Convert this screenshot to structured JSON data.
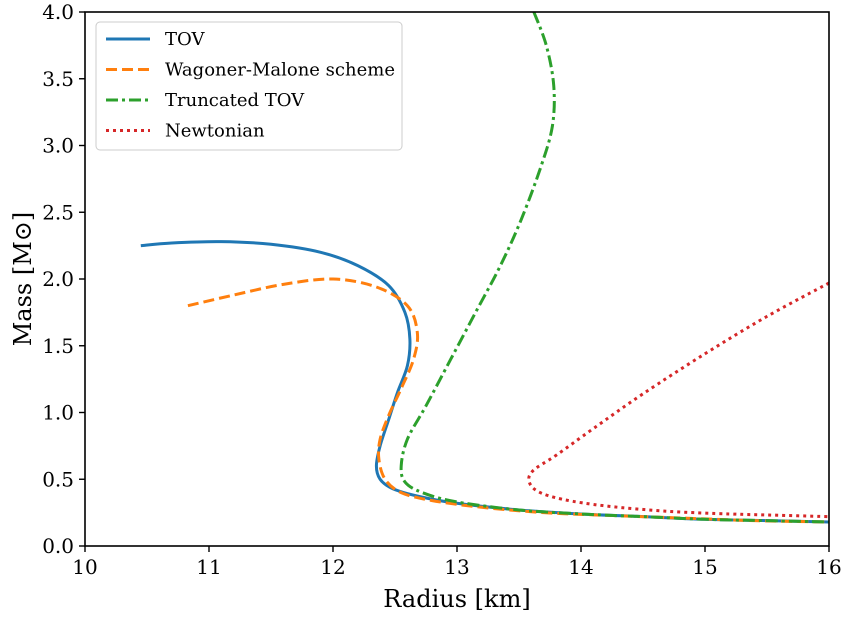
{
  "chart_data": {
    "type": "line",
    "xlabel": "Radius [km]",
    "ylabel": "Mass [M⊙]",
    "xlim": [
      10,
      16
    ],
    "ylim": [
      0,
      4
    ],
    "xticks": [
      "10",
      "11",
      "12",
      "13",
      "14",
      "15",
      "16"
    ],
    "yticks": [
      "0.0",
      "0.5",
      "1.0",
      "1.5",
      "2.0",
      "2.5",
      "3.0",
      "3.5",
      "4.0"
    ],
    "grid": false,
    "legend_position": "top-left",
    "series": [
      {
        "name": "TOV",
        "color": "#1f77b4",
        "style": "solid",
        "x": [
          10.45,
          10.7,
          11.1,
          11.5,
          11.9,
          12.2,
          12.45,
          12.58,
          12.62,
          12.6,
          12.52,
          12.45,
          12.38,
          12.35,
          12.38,
          12.48,
          12.7,
          13.0,
          13.5,
          14.0,
          14.5,
          15.0,
          15.5,
          16.0
        ],
        "y": [
          2.25,
          2.27,
          2.28,
          2.26,
          2.2,
          2.1,
          1.95,
          1.75,
          1.55,
          1.35,
          1.15,
          0.95,
          0.75,
          0.6,
          0.5,
          0.43,
          0.37,
          0.32,
          0.27,
          0.24,
          0.22,
          0.2,
          0.19,
          0.18
        ]
      },
      {
        "name": "Wagoner-Malone scheme",
        "color": "#ff7f0e",
        "style": "dashed",
        "x": [
          10.83,
          11.2,
          11.6,
          12.0,
          12.35,
          12.6,
          12.68,
          12.65,
          12.55,
          12.45,
          12.38,
          12.37,
          12.42,
          12.55,
          12.8,
          13.2,
          13.7,
          14.2,
          14.8,
          15.4,
          16.0
        ],
        "y": [
          1.8,
          1.88,
          1.96,
          2.0,
          1.94,
          1.8,
          1.6,
          1.4,
          1.18,
          0.98,
          0.8,
          0.65,
          0.5,
          0.4,
          0.34,
          0.29,
          0.25,
          0.23,
          0.21,
          0.19,
          0.18
        ]
      },
      {
        "name": "Truncated TOV",
        "color": "#2ca02c",
        "style": "dashdot",
        "x": [
          13.62,
          13.72,
          13.78,
          13.77,
          13.68,
          13.52,
          13.35,
          13.15,
          12.95,
          12.75,
          12.6,
          12.55,
          12.58,
          12.72,
          13.0,
          13.5,
          14.0,
          14.5,
          15.0,
          15.5,
          16.0
        ],
        "y": [
          4.0,
          3.75,
          3.45,
          3.15,
          2.85,
          2.45,
          2.1,
          1.75,
          1.4,
          1.05,
          0.8,
          0.6,
          0.48,
          0.4,
          0.33,
          0.27,
          0.24,
          0.22,
          0.2,
          0.19,
          0.18
        ]
      },
      {
        "name": "Newtonian",
        "color": "#d62728",
        "style": "dotted",
        "x": [
          16.0,
          15.5,
          15.0,
          14.5,
          14.1,
          13.8,
          13.62,
          13.58,
          13.65,
          13.85,
          14.2,
          14.7,
          15.2,
          15.6,
          16.0
        ],
        "y": [
          1.97,
          1.72,
          1.44,
          1.14,
          0.88,
          0.68,
          0.57,
          0.49,
          0.41,
          0.35,
          0.3,
          0.26,
          0.24,
          0.23,
          0.22
        ]
      }
    ]
  }
}
